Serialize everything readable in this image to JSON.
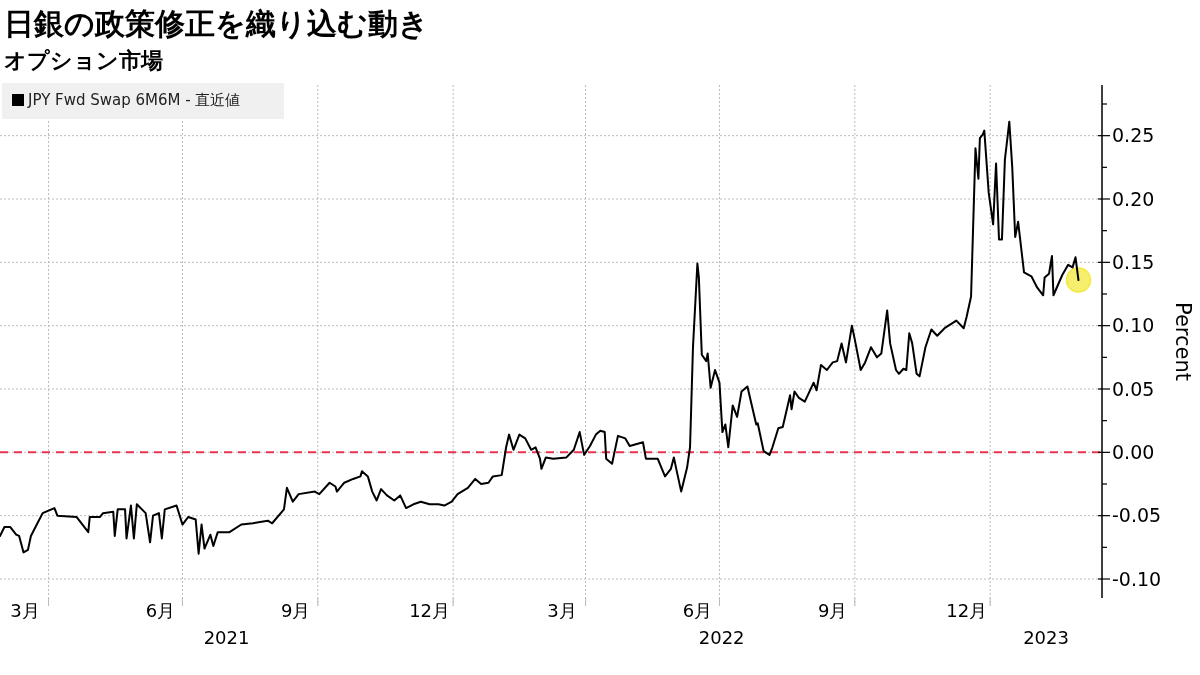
{
  "chart_data": {
    "type": "line",
    "title": "日銀の政策修正を織り込む動き",
    "subtitle": "オプション市場",
    "ylabel": "Percent",
    "xlim": [
      "2021-02-27",
      "2023-03-18"
    ],
    "xticks": [
      {
        "value": "2021-03-16",
        "label": "3月"
      },
      {
        "value": "2021-04-01",
        "label": null
      },
      {
        "value": "2021-06-16",
        "label": "6月"
      },
      {
        "value": "2021-07-01",
        "label": null
      },
      {
        "value": "2021-09-16",
        "label": "9月"
      },
      {
        "value": "2021-10-01",
        "label": null
      },
      {
        "value": "2021-12-16",
        "label": "12月"
      },
      {
        "value": "2022-01-01",
        "label": null
      },
      {
        "value": "2022-03-16",
        "label": "3月"
      },
      {
        "value": "2022-04-01",
        "label": null
      },
      {
        "value": "2022-06-16",
        "label": "6月"
      },
      {
        "value": "2022-07-01",
        "label": null
      },
      {
        "value": "2022-09-16",
        "label": "9月"
      },
      {
        "value": "2022-10-01",
        "label": null
      },
      {
        "value": "2022-12-16",
        "label": "12月"
      },
      {
        "value": "2023-01-01",
        "label": null
      }
    ],
    "ylim": [
      -0.115,
      0.29
    ],
    "yticks": [
      {
        "value": -0.1,
        "label": "-0.10"
      },
      {
        "value": -0.075,
        "label": null
      },
      {
        "value": -0.05,
        "label": "-0.05"
      },
      {
        "value": -0.025,
        "label": null
      },
      {
        "value": 0,
        "label": "0.00"
      },
      {
        "value": 0.025,
        "label": null
      },
      {
        "value": 0.05,
        "label": "0.05"
      },
      {
        "value": 0.075,
        "label": null
      },
      {
        "value": 0.1,
        "label": "0.10"
      },
      {
        "value": 0.125,
        "label": null
      },
      {
        "value": 0.15,
        "label": "0.15"
      },
      {
        "value": 0.175,
        "label": null
      },
      {
        "value": 0.2,
        "label": "0.20"
      },
      {
        "value": 0.225,
        "label": null
      },
      {
        "value": 0.25,
        "label": "0.25"
      },
      {
        "value": 0.275,
        "label": null
      }
    ],
    "grid": true,
    "legend": "top left",
    "line_style": "solid",
    "marker": "none",
    "ref_lines": [
      {
        "axis": "y",
        "value": 0,
        "color": "#e8344e",
        "line_style": "dashed"
      }
    ],
    "annotations": [
      "2021",
      "2022",
      "2023"
    ],
    "series": [
      {
        "name": "JPY Fwd Swap 6M6M - 直近値",
        "color": "#000000",
        "x": [
          "2021-02-27",
          "2021-03-02",
          "2021-03-06",
          "2021-03-10",
          "2021-03-12",
          "2021-03-15",
          "2021-03-18",
          "2021-03-20",
          "2021-03-24",
          "2021-03-28",
          "2021-03-30",
          "2021-04-05",
          "2021-04-07",
          "2021-04-20",
          "2021-04-28",
          "2021-04-29",
          "2021-05-06",
          "2021-05-08",
          "2021-05-15",
          "2021-05-16",
          "2021-05-18",
          "2021-05-23",
          "2021-05-24",
          "2021-05-27",
          "2021-05-29",
          "2021-05-31",
          "2021-06-06",
          "2021-06-09",
          "2021-06-11",
          "2021-06-15",
          "2021-06-17",
          "2021-06-19",
          "2021-06-27",
          "2021-07-01",
          "2021-07-05",
          "2021-07-10",
          "2021-07-12",
          "2021-07-14",
          "2021-07-16",
          "2021-07-20",
          "2021-07-22",
          "2021-07-25",
          "2021-08-02",
          "2021-08-10",
          "2021-08-18",
          "2021-08-28",
          "2021-08-31",
          "2021-09-08",
          "2021-09-10",
          "2021-09-14",
          "2021-09-18",
          "2021-09-29",
          "2021-10-02",
          "2021-10-09",
          "2021-10-13",
          "2021-10-14",
          "2021-10-19",
          "2021-10-25",
          "2021-10-30",
          "2021-10-31",
          "2021-11-04",
          "2021-11-07",
          "2021-11-10",
          "2021-11-13",
          "2021-11-17",
          "2021-11-22",
          "2021-11-26",
          "2021-11-30",
          "2021-12-05",
          "2021-12-10",
          "2021-12-16",
          "2021-12-22",
          "2021-12-26",
          "2021-12-31",
          "2022-01-04",
          "2022-01-11",
          "2022-01-16",
          "2022-01-20",
          "2022-01-25",
          "2022-01-28",
          "2022-02-03",
          "2022-02-06",
          "2022-02-08",
          "2022-02-11",
          "2022-02-15",
          "2022-02-19",
          "2022-02-23",
          "2022-02-26",
          "2022-03-01",
          "2022-03-02",
          "2022-03-05",
          "2022-03-10",
          "2022-03-19",
          "2022-03-24",
          "2022-03-28",
          "2022-03-31",
          "2022-04-04",
          "2022-04-08",
          "2022-04-11",
          "2022-04-14",
          "2022-04-15",
          "2022-04-19",
          "2022-04-23",
          "2022-04-28",
          "2022-05-01",
          "2022-05-07",
          "2022-05-10",
          "2022-05-12",
          "2022-05-20",
          "2022-05-25",
          "2022-05-29",
          "2022-05-31",
          "2022-06-02",
          "2022-06-05",
          "2022-06-09",
          "2022-06-11",
          "2022-06-13",
          "2022-06-16",
          "2022-06-17",
          "2022-06-19",
          "2022-06-22",
          "2022-06-23",
          "2022-06-25",
          "2022-06-28",
          "2022-07-01",
          "2022-07-03",
          "2022-07-05",
          "2022-07-07",
          "2022-07-10",
          "2022-07-13",
          "2022-07-16",
          "2022-07-20",
          "2022-07-23",
          "2022-07-26",
          "2022-07-27",
          "2022-07-31",
          "2022-08-04",
          "2022-08-06",
          "2022-08-10",
          "2022-08-13",
          "2022-08-18",
          "2022-08-19",
          "2022-08-21",
          "2022-08-24",
          "2022-08-28",
          "2022-09-03",
          "2022-09-05",
          "2022-09-08",
          "2022-09-12",
          "2022-09-16",
          "2022-09-19",
          "2022-09-22",
          "2022-09-25",
          "2022-09-29",
          "2022-10-01",
          "2022-10-05",
          "2022-10-08",
          "2022-10-12",
          "2022-10-16",
          "2022-10-19",
          "2022-10-23",
          "2022-10-25",
          "2022-10-29",
          "2022-10-31",
          "2022-11-03",
          "2022-11-05",
          "2022-11-07",
          "2022-11-09",
          "2022-11-12",
          "2022-11-14",
          "2022-11-18",
          "2022-11-22",
          "2022-11-26",
          "2022-12-01",
          "2022-12-09",
          "2022-12-14",
          "2022-12-16",
          "2022-12-19",
          "2022-12-22",
          "2022-12-24",
          "2022-12-25",
          "2022-12-27",
          "2022-12-28",
          "2022-12-31",
          "2023-01-03",
          "2023-01-05",
          "2023-01-07",
          "2023-01-09",
          "2023-01-11",
          "2023-01-14",
          "2023-01-16",
          "2023-01-18",
          "2023-01-20",
          "2023-01-24",
          "2023-01-29",
          "2023-02-02",
          "2023-02-06",
          "2023-02-07",
          "2023-02-10",
          "2023-02-12",
          "2023-02-13",
          "2023-02-19",
          "2023-02-23",
          "2023-02-26",
          "2023-02-28",
          "2023-03-02"
        ],
        "values": [
          -0.066,
          -0.059,
          -0.059,
          -0.065,
          -0.066,
          -0.079,
          -0.077,
          -0.066,
          -0.057,
          -0.048,
          -0.047,
          -0.044,
          -0.05,
          -0.051,
          -0.063,
          -0.051,
          -0.051,
          -0.048,
          -0.047,
          -0.066,
          -0.045,
          -0.045,
          -0.068,
          -0.042,
          -0.068,
          -0.041,
          -0.048,
          -0.071,
          -0.05,
          -0.048,
          -0.068,
          -0.045,
          -0.042,
          -0.057,
          -0.051,
          -0.053,
          -0.08,
          -0.057,
          -0.076,
          -0.065,
          -0.074,
          -0.063,
          -0.063,
          -0.057,
          -0.056,
          -0.054,
          -0.056,
          -0.045,
          -0.028,
          -0.039,
          -0.033,
          -0.031,
          -0.033,
          -0.024,
          -0.027,
          -0.031,
          -0.024,
          -0.021,
          -0.019,
          -0.015,
          -0.019,
          -0.031,
          -0.038,
          -0.029,
          -0.034,
          -0.038,
          -0.034,
          -0.044,
          -0.041,
          -0.039,
          -0.041,
          -0.041,
          -0.042,
          -0.039,
          -0.033,
          -0.028,
          -0.021,
          -0.025,
          -0.024,
          -0.019,
          -0.018,
          0.004,
          0.014,
          0.002,
          0.014,
          0.011,
          0.002,
          0.004,
          -0.005,
          -0.013,
          -0.004,
          -0.005,
          -0.004,
          0.002,
          0.016,
          -0.002,
          0.005,
          0.014,
          0.017,
          0.016,
          -0.005,
          -0.009,
          0.013,
          0.011,
          0.005,
          0.007,
          0.008,
          -0.005,
          -0.005,
          -0.019,
          -0.013,
          -0.004,
          -0.015,
          -0.031,
          -0.012,
          0.004,
          0.083,
          0.149,
          0.138,
          0.077,
          0.072,
          0.078,
          0.051,
          0.065,
          0.055,
          0.016,
          0.022,
          0.004,
          0.037,
          0.028,
          0.048,
          0.052,
          0.037,
          0.022,
          0.023,
          0.001,
          -0.002,
          0.004,
          0.019,
          0.02,
          0.045,
          0.034,
          0.048,
          0.043,
          0.04,
          0.055,
          0.049,
          0.069,
          0.065,
          0.071,
          0.072,
          0.086,
          0.071,
          0.1,
          0.089,
          0.065,
          0.071,
          0.083,
          0.075,
          0.078,
          0.112,
          0.086,
          0.065,
          0.062,
          0.066,
          0.065,
          0.094,
          0.086,
          0.062,
          0.06,
          0.083,
          0.097,
          0.092,
          0.098,
          0.104,
          0.098,
          0.107,
          0.123,
          0.24,
          0.216,
          0.248,
          0.251,
          0.254,
          0.205,
          0.18,
          0.228,
          0.168,
          0.168,
          0.231,
          0.261,
          0.225,
          0.17,
          0.182,
          0.142,
          0.139,
          0.13,
          0.124,
          0.138,
          0.141,
          0.155,
          0.124,
          0.14,
          0.148,
          0.146,
          0.154,
          0.136
        ]
      },
      {
        "type": "scatter",
        "color": "#f2e93c",
        "marker": "circle",
        "x": [
          "2023-03-02"
        ],
        "values": [
          0.136
        ]
      }
    ]
  }
}
